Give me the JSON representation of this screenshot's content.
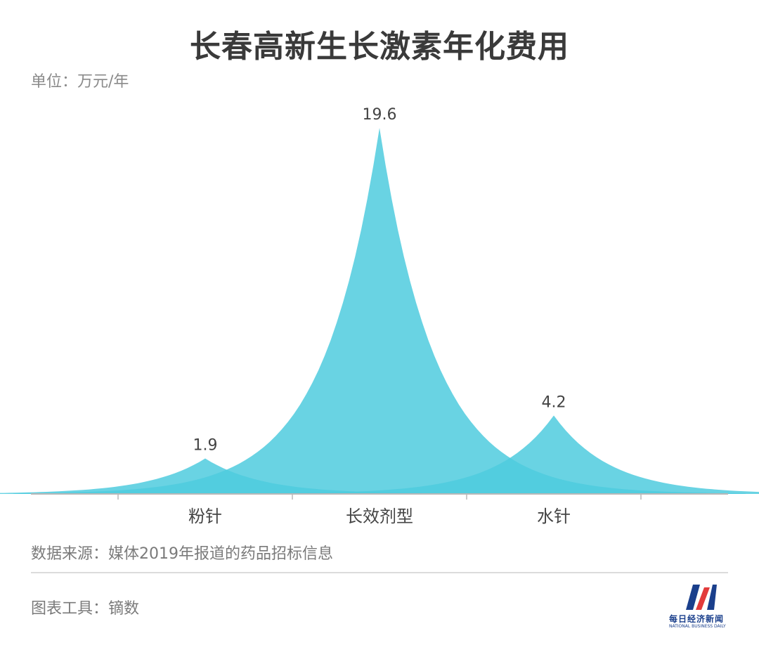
{
  "title": "长春高新生长激素年化费用",
  "unit_label": "单位：万元/年",
  "source": "数据来源：媒体2019年报道的药品招标信息",
  "tool": "图表工具：镝数",
  "logo": {
    "cn": "每日经济新闻",
    "en": "NATIONAL BUSINESS DAILY"
  },
  "colors": {
    "fill": "#4fcbde",
    "axis": "#b8b8b8",
    "label": "#444444",
    "logo_blue": "#1a3f8c",
    "logo_red": "#e23b3b"
  },
  "chart_data": {
    "type": "area",
    "subtype": "peak",
    "categories": [
      "粉针",
      "长效剂型",
      "水针"
    ],
    "values": [
      1.9,
      19.6,
      4.2
    ],
    "data_labels": [
      "1.9",
      "19.6",
      "4.2"
    ],
    "title": "长春高新生长激素年化费用",
    "unit": "万元/年",
    "ylim": [
      0,
      19.6
    ],
    "grid": false,
    "legend": "none"
  }
}
